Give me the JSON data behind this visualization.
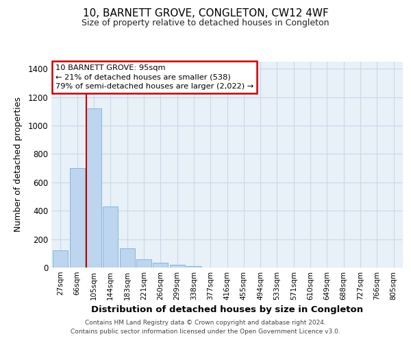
{
  "title": "10, BARNETT GROVE, CONGLETON, CW12 4WF",
  "subtitle": "Size of property relative to detached houses in Congleton",
  "xlabel": "Distribution of detached houses by size in Congleton",
  "ylabel": "Number of detached properties",
  "bar_labels": [
    "27sqm",
    "66sqm",
    "105sqm",
    "144sqm",
    "183sqm",
    "221sqm",
    "260sqm",
    "299sqm",
    "338sqm",
    "377sqm",
    "416sqm",
    "455sqm",
    "494sqm",
    "533sqm",
    "571sqm",
    "610sqm",
    "649sqm",
    "688sqm",
    "727sqm",
    "766sqm",
    "805sqm"
  ],
  "bar_heights": [
    120,
    700,
    1120,
    430,
    135,
    57,
    35,
    20,
    10,
    0,
    0,
    0,
    0,
    0,
    0,
    0,
    0,
    0,
    0,
    0,
    0
  ],
  "bar_color": "#bdd5ee",
  "bar_edge_color": "#7aafd4",
  "grid_color": "#c8d8ea",
  "background_color": "#e8f0f8",
  "property_bin_index": 2,
  "annotation_text": "10 BARNETT GROVE: 95sqm\n← 21% of detached houses are smaller (538)\n79% of semi-detached houses are larger (2,022) →",
  "annotation_box_color": "#ffffff",
  "annotation_box_edge_color": "#cc0000",
  "annotation_text_color": "#000000",
  "vline_color": "#cc0000",
  "ylim": [
    0,
    1450
  ],
  "yticks": [
    0,
    200,
    400,
    600,
    800,
    1000,
    1200,
    1400
  ],
  "footer_line1": "Contains HM Land Registry data © Crown copyright and database right 2024.",
  "footer_line2": "Contains public sector information licensed under the Open Government Licence v3.0."
}
